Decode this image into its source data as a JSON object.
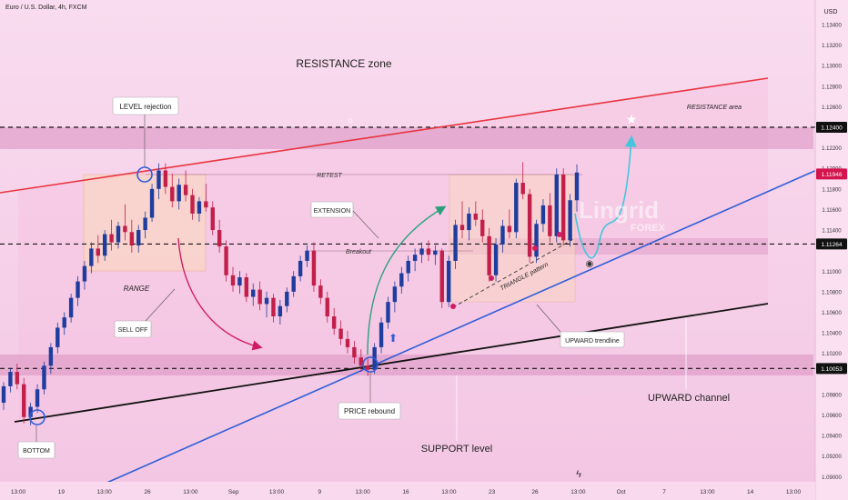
{
  "header": {
    "symbol_line": "Euro / U.S. Dollar, 4h, FXCM",
    "currency": "USD"
  },
  "levels": {
    "resistance": {
      "price": 1.124,
      "label": "1.12400"
    },
    "mid": {
      "price": 1.11264,
      "label": "1.11264"
    },
    "support": {
      "price": 1.10053,
      "label": "1.10053"
    },
    "current": {
      "price": 1.11946,
      "label": "1.11946"
    }
  },
  "colors": {
    "background": "#f7d3ea",
    "candle_up": "#1f3d9e",
    "candle_down": "#c21f4a",
    "resistance_line": "#e8343f",
    "trendline": "#2f5ed8",
    "channel_base": "#111111",
    "projection": "#43c6dc",
    "current_price": "#d4144c"
  },
  "annotations": {
    "resistance_zone": "RESISTANCE zone",
    "resistance_area": "RESISTANCE area",
    "level_rejection": "LEVEL rejection",
    "retest": "RETEST",
    "extension": "EXTENSION",
    "breakout": "Breakout",
    "range": "RANGE",
    "sell_off": "SELL OFF",
    "triangle": "TRIANGLE pattern",
    "upward_trendline": "UPWARD trendline",
    "price_rebound": "PRICE rebound",
    "upward_channel": "UPWARD channel",
    "support_level": "SUPPORT level",
    "bottom": "BOTTOM",
    "watermark": "Lingrid",
    "watermark_sub": "FOREX"
  },
  "chart_data": {
    "type": "candlestick",
    "title": "Euro / U.S. Dollar, 4h, FXCM",
    "ylabel": "USD",
    "ylim": [
      1.0895,
      1.1355
    ],
    "y_ticks": [
      "1.13400",
      "1.13200",
      "1.13000",
      "1.12800",
      "1.12600",
      "1.12200",
      "1.12000",
      "1.11800",
      "1.11600",
      "1.11400",
      "1.11000",
      "1.10800",
      "1.10600",
      "1.10400",
      "1.10200",
      "1.09800",
      "1.09600",
      "1.09400",
      "1.09200",
      "1.09000"
    ],
    "x_ticks": [
      "13:00",
      "19",
      "13:00",
      "26",
      "13:00",
      "Sep",
      "13:00",
      "9",
      "13:00",
      "16",
      "13:00",
      "23",
      "26",
      "13:00",
      "Oct",
      "7",
      "13:00",
      "14",
      "13:00"
    ],
    "series": [
      {
        "values": [
          [
            1.0972,
            1.0992,
            1.0965,
            1.0988
          ],
          [
            1.0988,
            1.1005,
            1.0982,
            1.1002
          ],
          [
            1.1002,
            1.101,
            1.0985,
            1.099
          ],
          [
            1.099,
            1.0996,
            1.0952,
            1.0958
          ],
          [
            1.0958,
            1.0972,
            1.095,
            1.0968
          ],
          [
            1.0968,
            1.099,
            1.0962,
            1.0985
          ],
          [
            1.0985,
            1.1012,
            1.098,
            1.1008
          ],
          [
            1.1008,
            1.103,
            1.1,
            1.1026
          ],
          [
            1.1026,
            1.105,
            1.102,
            1.1045
          ],
          [
            1.1045,
            1.106,
            1.1038,
            1.1055
          ],
          [
            1.1055,
            1.1078,
            1.105,
            1.1074
          ],
          [
            1.1074,
            1.1095,
            1.1066,
            1.109
          ],
          [
            1.109,
            1.111,
            1.1082,
            1.1105
          ],
          [
            1.1105,
            1.1128,
            1.1098,
            1.1122
          ],
          [
            1.1122,
            1.1135,
            1.1108,
            1.1115
          ],
          [
            1.1115,
            1.114,
            1.111,
            1.1136
          ],
          [
            1.1136,
            1.115,
            1.112,
            1.1128
          ],
          [
            1.1128,
            1.1148,
            1.1122,
            1.1144
          ],
          [
            1.1144,
            1.1165,
            1.113,
            1.1138
          ],
          [
            1.1138,
            1.115,
            1.1118,
            1.1125
          ],
          [
            1.1125,
            1.1145,
            1.1118,
            1.114
          ],
          [
            1.114,
            1.1158,
            1.1132,
            1.1152
          ],
          [
            1.1152,
            1.1185,
            1.1148,
            1.118
          ],
          [
            1.118,
            1.1205,
            1.117,
            1.1198
          ],
          [
            1.1198,
            1.1205,
            1.1175,
            1.1182
          ],
          [
            1.1182,
            1.1195,
            1.1162,
            1.1168
          ],
          [
            1.1168,
            1.119,
            1.116,
            1.1184
          ],
          [
            1.1184,
            1.1198,
            1.1168,
            1.1174
          ],
          [
            1.1174,
            1.118,
            1.115,
            1.1156
          ],
          [
            1.1156,
            1.1172,
            1.1148,
            1.1168
          ],
          [
            1.1168,
            1.1185,
            1.1158,
            1.1162
          ],
          [
            1.1162,
            1.1168,
            1.1135,
            1.114
          ],
          [
            1.114,
            1.115,
            1.1118,
            1.1124
          ],
          [
            1.1124,
            1.113,
            1.109,
            1.1096
          ],
          [
            1.1096,
            1.1104,
            1.108,
            1.1086
          ],
          [
            1.1086,
            1.11,
            1.1078,
            1.1094
          ],
          [
            1.1094,
            1.1098,
            1.107,
            1.1075
          ],
          [
            1.1075,
            1.1088,
            1.1066,
            1.1082
          ],
          [
            1.1082,
            1.109,
            1.1062,
            1.1068
          ],
          [
            1.1068,
            1.108,
            1.1055,
            1.1074
          ],
          [
            1.1074,
            1.1078,
            1.105,
            1.1056
          ],
          [
            1.1056,
            1.1072,
            1.1048,
            1.1066
          ],
          [
            1.1066,
            1.1084,
            1.106,
            1.108
          ],
          [
            1.108,
            1.11,
            1.1075,
            1.1095
          ],
          [
            1.1095,
            1.1115,
            1.109,
            1.111
          ],
          [
            1.111,
            1.1125,
            1.1104,
            1.112
          ],
          [
            1.112,
            1.1128,
            1.108,
            1.1086
          ],
          [
            1.1086,
            1.1092,
            1.1068,
            1.1074
          ],
          [
            1.1074,
            1.108,
            1.105,
            1.1056
          ],
          [
            1.1056,
            1.1064,
            1.1038,
            1.1044
          ],
          [
            1.1044,
            1.1052,
            1.1028,
            1.1034
          ],
          [
            1.1034,
            1.1042,
            1.102,
            1.1026
          ],
          [
            1.1026,
            1.1032,
            1.101,
            1.1016
          ],
          [
            1.1016,
            1.1024,
            1.1002,
            1.1008
          ],
          [
            1.1008,
            1.1015,
            1.0998,
            1.1004
          ],
          [
            1.1004,
            1.103,
            1.1,
            1.1026
          ],
          [
            1.1026,
            1.1055,
            1.102,
            1.105
          ],
          [
            1.105,
            1.1075,
            1.1044,
            1.107
          ],
          [
            1.107,
            1.109,
            1.106,
            1.1085
          ],
          [
            1.1085,
            1.1104,
            1.1078,
            1.1098
          ],
          [
            1.1098,
            1.1115,
            1.109,
            1.111
          ],
          [
            1.111,
            1.1122,
            1.11,
            1.1116
          ],
          [
            1.1116,
            1.1128,
            1.1108,
            1.1122
          ],
          [
            1.1122,
            1.113,
            1.111,
            1.1116
          ],
          [
            1.1116,
            1.1125,
            1.1106,
            1.112
          ],
          [
            1.112,
            1.1122,
            1.1064,
            1.107
          ],
          [
            1.107,
            1.1115,
            1.1065,
            1.111
          ],
          [
            1.111,
            1.115,
            1.1102,
            1.1145
          ],
          [
            1.1145,
            1.1168,
            1.1132,
            1.114
          ],
          [
            1.114,
            1.1162,
            1.113,
            1.1156
          ],
          [
            1.1156,
            1.1168,
            1.1144,
            1.115
          ],
          [
            1.115,
            1.116,
            1.1128,
            1.1134
          ],
          [
            1.1134,
            1.1142,
            1.109,
            1.1096
          ],
          [
            1.1096,
            1.1132,
            1.109,
            1.1126
          ],
          [
            1.1126,
            1.115,
            1.1118,
            1.1144
          ],
          [
            1.1144,
            1.116,
            1.1132,
            1.1138
          ],
          [
            1.1138,
            1.119,
            1.1132,
            1.1186
          ],
          [
            1.1186,
            1.1206,
            1.117,
            1.1175
          ],
          [
            1.1175,
            1.118,
            1.1108,
            1.1114
          ],
          [
            1.1114,
            1.115,
            1.1108,
            1.1146
          ],
          [
            1.1146,
            1.117,
            1.1138,
            1.1164
          ],
          [
            1.1164,
            1.1176,
            1.1128,
            1.1134
          ],
          [
            1.1134,
            1.12,
            1.1128,
            1.1194
          ],
          [
            1.1194,
            1.12,
            1.1125,
            1.113
          ],
          [
            1.113,
            1.1175,
            1.1124,
            1.1169
          ],
          [
            1.1169,
            1.1204,
            1.1158,
            1.1196
          ]
        ]
      }
    ],
    "levels": [
      1.124,
      1.11264,
      1.10053
    ],
    "current_price": 1.11946
  }
}
